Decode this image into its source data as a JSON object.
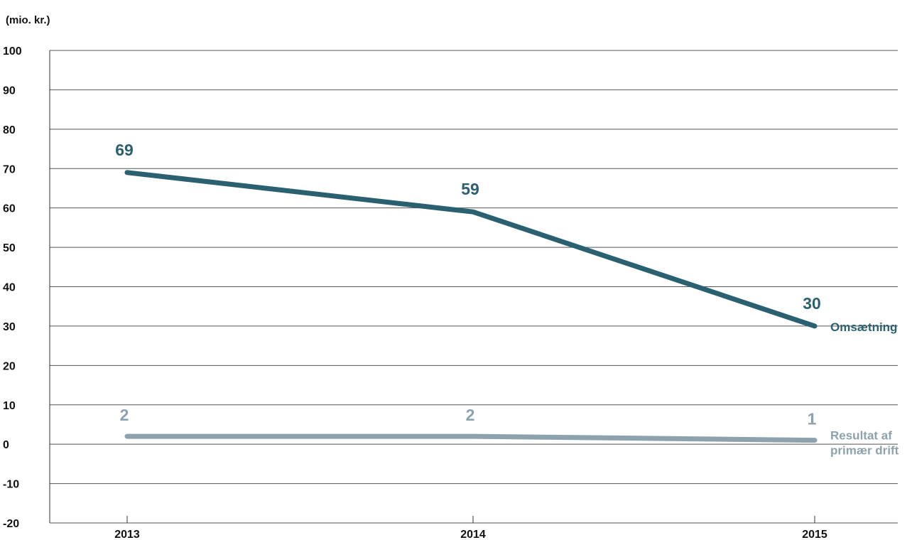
{
  "chart_data": {
    "type": "line",
    "title": "",
    "unit_label": "(mio. kr.)",
    "xlabel": "",
    "ylabel": "",
    "categories": [
      "2013",
      "2014",
      "2015"
    ],
    "ylim": [
      -20,
      100
    ],
    "yticks": [
      "100",
      "90",
      "80",
      "70",
      "60",
      "50",
      "40",
      "30",
      "20",
      "10",
      "0",
      "-10",
      "-20"
    ],
    "grid": true,
    "series": [
      {
        "name": "Omsætning",
        "name_lines": [
          "Omsætning"
        ],
        "values": [
          69,
          59,
          30
        ],
        "labels": [
          "69",
          "59",
          "30"
        ],
        "color": "#2b6070"
      },
      {
        "name": "Resultat af primær drift",
        "name_lines": [
          "Resultat af",
          "primær drift"
        ],
        "values": [
          2,
          2,
          1
        ],
        "labels": [
          "2",
          "2",
          "1"
        ],
        "color": "#8da2ad"
      }
    ]
  }
}
